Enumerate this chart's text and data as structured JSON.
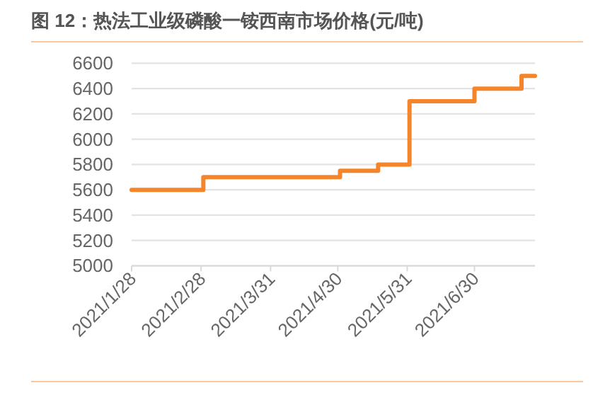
{
  "chart_data": {
    "type": "step",
    "title": "图 12：热法工业级磷酸一铵西南市场价格(元/吨)",
    "x": [
      "2021-01-28",
      "2021-03-01",
      "2021-05-01",
      "2021-05-18",
      "2021-06-01",
      "2021-06-30",
      "2021-07-21",
      "2021-07-27"
    ],
    "values": [
      5600,
      5700,
      5750,
      5800,
      6300,
      6400,
      6500,
      6500
    ],
    "color": "#f5852a",
    "xlim": [
      "2021-01-28",
      "2021-07-27"
    ],
    "xticks": [
      {
        "value": "2021-01-28",
        "label": "2021/1/28"
      },
      {
        "value": "2021-02-28",
        "label": "2021/2/28"
      },
      {
        "value": "2021-03-31",
        "label": "2021/3/31"
      },
      {
        "value": "2021-04-30",
        "label": "2021/4/30"
      },
      {
        "value": "2021-05-31",
        "label": "2021/5/31"
      },
      {
        "value": "2021-06-30",
        "label": "2021/6/30"
      }
    ],
    "ylim": [
      5000,
      6600
    ],
    "yticks": [
      5000,
      5200,
      5400,
      5600,
      5800,
      6000,
      6200,
      6400,
      6600
    ],
    "grid": "y"
  }
}
